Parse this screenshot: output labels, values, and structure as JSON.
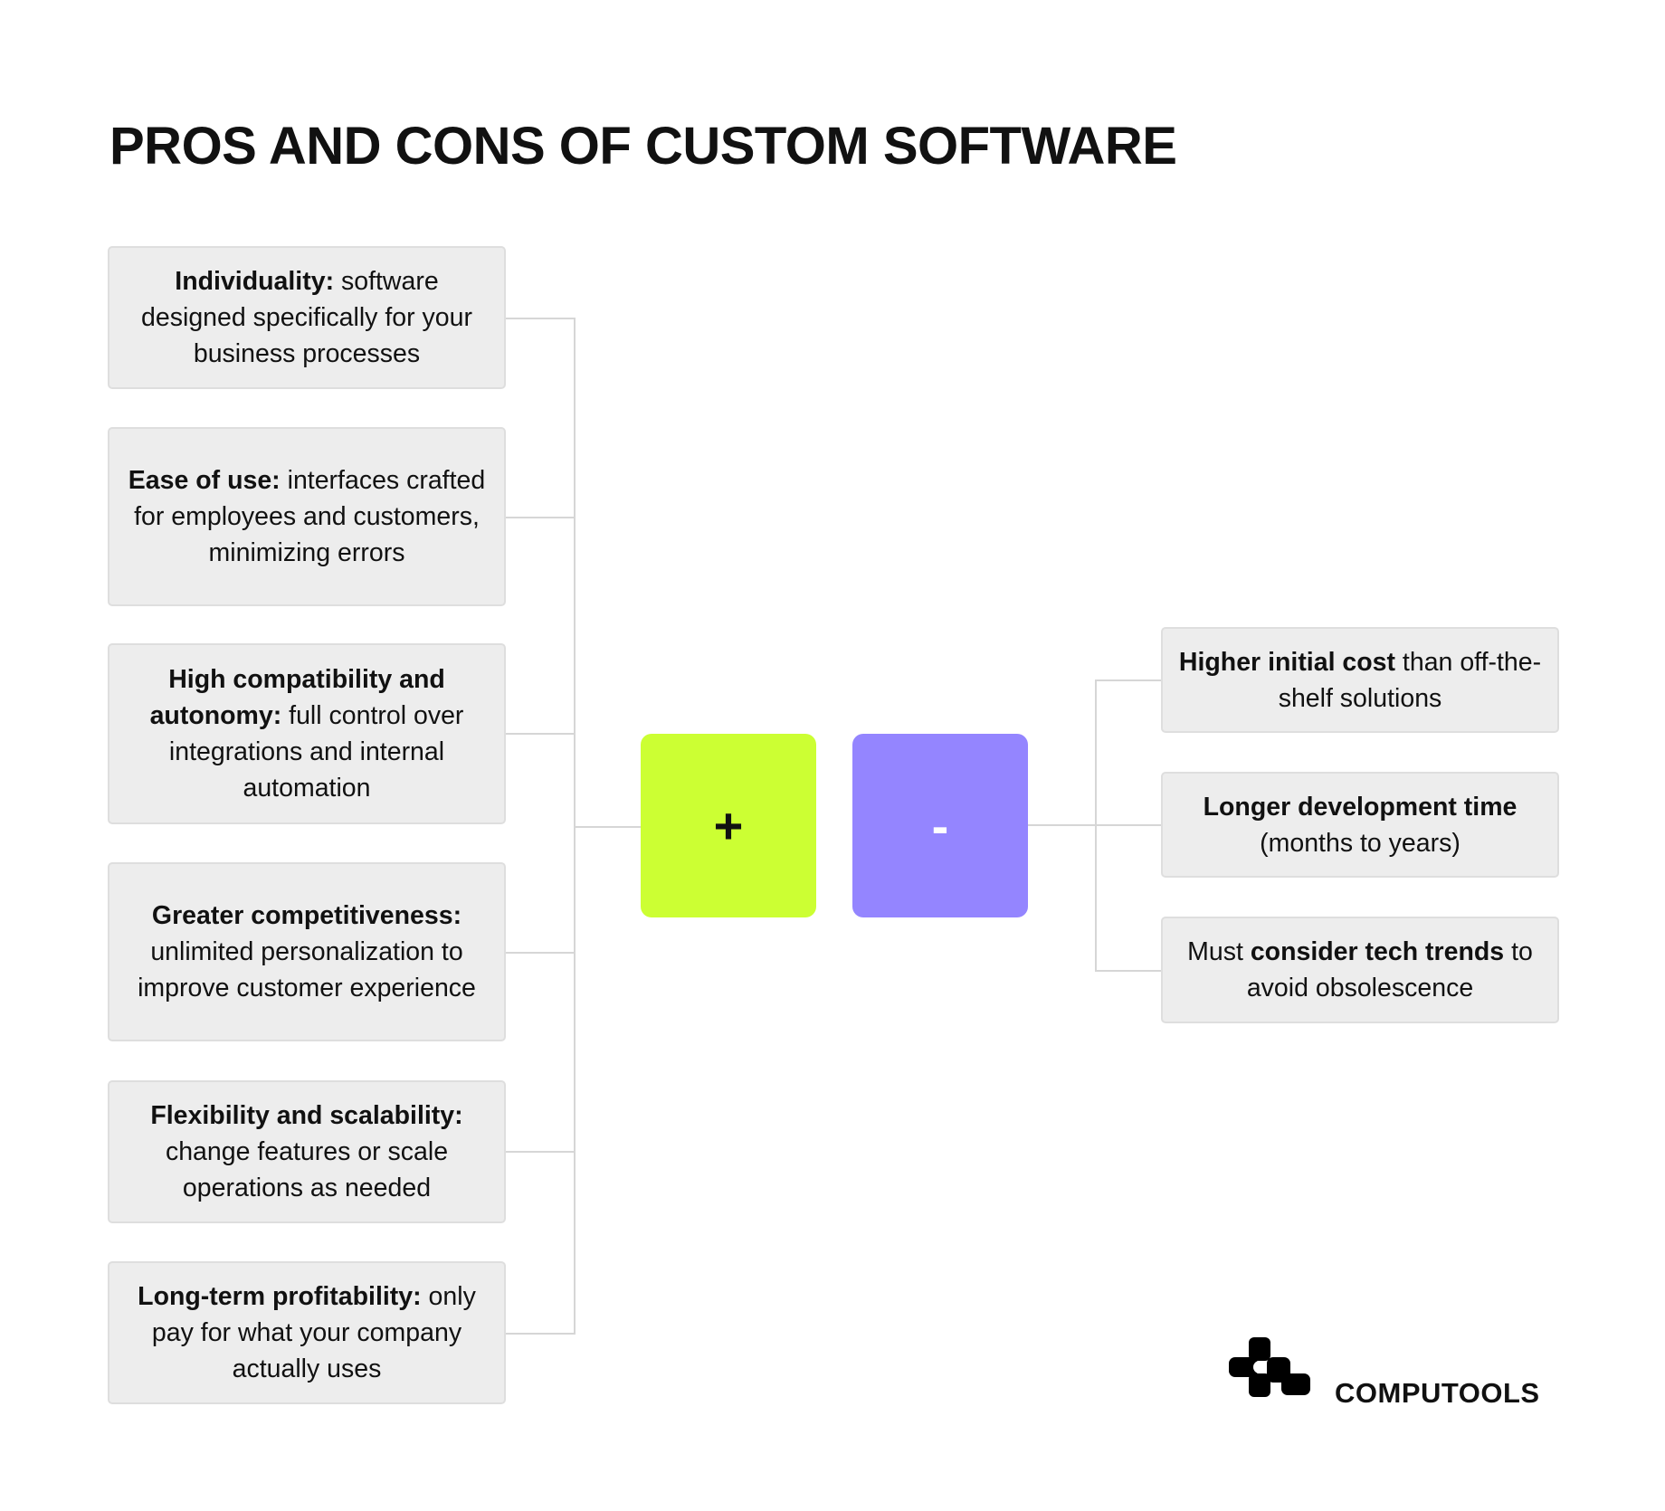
{
  "title": "PROS AND CONS OF CUSTOM SOFTWARE",
  "pros": [
    {
      "bold": "Individuality:",
      "text": " software designed specifically for your business processes"
    },
    {
      "bold": "Ease of use:",
      "text": " interfaces crafted for employees and customers, minimizing errors"
    },
    {
      "bold": "High compatibility and autonomy:",
      "text": " full control over integrations and internal automation"
    },
    {
      "bold": "Greater competitiveness:",
      "text": " unlimited personalization to improve customer experience"
    },
    {
      "bold": "Flexibility and scalability:",
      "text": " change features or scale operations as needed"
    },
    {
      "bold": "Long-term profitability:",
      "text": " only pay for what your company actually uses"
    }
  ],
  "cons": [
    {
      "pre": "",
      "bold": "Higher initial cost",
      "text": " than off-the-shelf solutions"
    },
    {
      "pre": "",
      "bold": "Longer development time",
      "text": " (months to years)"
    },
    {
      "pre": "Must ",
      "bold": "consider tech trends",
      "text": " to avoid obsolescence"
    }
  ],
  "plus_symbol": "+",
  "minus_symbol": "-",
  "colors": {
    "plus": "#ccff33",
    "minus": "#9485ff",
    "box": "#ededed",
    "line": "#d6d6d6"
  },
  "brand": {
    "name": "COMPUTOOLS",
    "icon": "computools-logo-icon"
  }
}
